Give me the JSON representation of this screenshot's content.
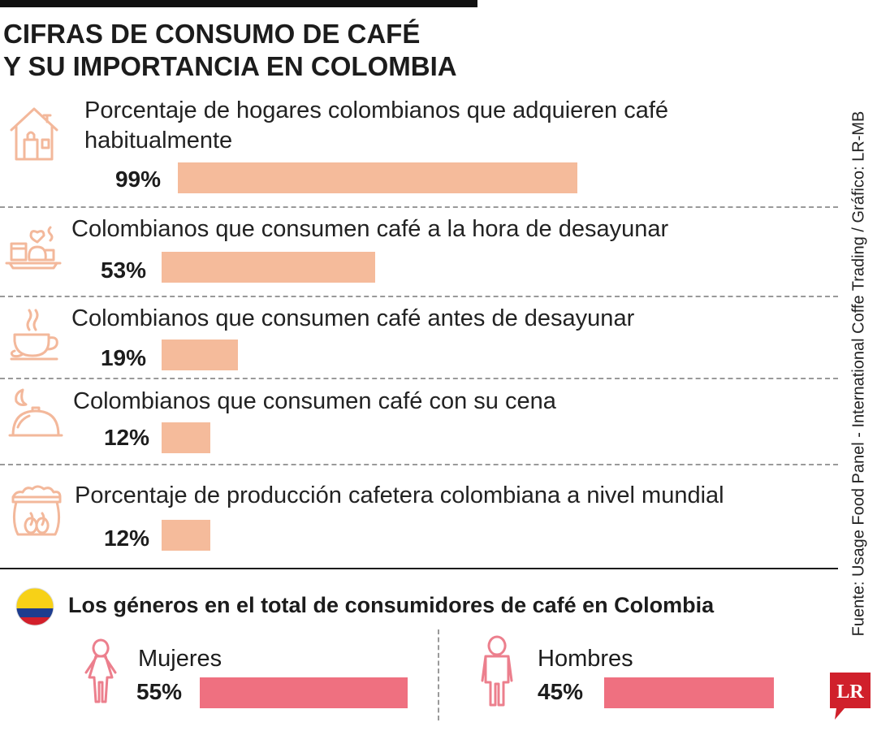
{
  "title": {
    "line1": "CIFRAS DE CONSUMO DE CAFÉ",
    "line2": "Y SU IMPORTANCIA EN COLOMBIA"
  },
  "colors": {
    "bar_main": "#f5bb9b",
    "bar_gender": "#ef7080",
    "icon_main": "#f3b89b",
    "icon_gender": "#ec7f8d"
  },
  "chart_data": [
    {
      "type": "bar",
      "orientation": "horizontal",
      "xlim": [
        0,
        100
      ],
      "categories": [
        "Porcentaje de hogares colombianos que adquieren café habitualmente",
        "Colombianos que consumen café a la hora de desayunar",
        "Colombianos que consumen café antes de desayunar",
        "Colombianos que consumen café con su cena",
        "Porcentaje de producción cafetera colombiana a nivel mundial"
      ],
      "label_lines": [
        [
          "Porcentaje de hogares colombianos que adquieren café",
          "habitualmente"
        ],
        [
          "Colombianos que consumen café a la hora de desayunar"
        ],
        [
          "Colombianos que consumen café antes de desayunar"
        ],
        [
          "Colombianos que consumen café con su cena"
        ],
        [
          "Porcentaje de producción cafetera colombiana a nivel mundial"
        ]
      ],
      "values": [
        99,
        53,
        19,
        12,
        12
      ],
      "value_labels": [
        "99%",
        "53%",
        "19%",
        "12%",
        "12%"
      ],
      "icons": [
        "house-icon",
        "breakfast-tray-icon",
        "coffee-cup-icon",
        "cloche-moon-icon",
        "coffee-sack-icon"
      ]
    },
    {
      "type": "bar",
      "orientation": "horizontal",
      "title": "Los géneros en el total de consumidores de café en Colombia",
      "xlim": [
        0,
        100
      ],
      "categories": [
        "Mujeres",
        "Hombres"
      ],
      "values": [
        55,
        45
      ],
      "value_labels": [
        "55%",
        "45%"
      ],
      "icons": [
        "woman-icon",
        "man-icon"
      ]
    }
  ],
  "source": "Fuente: Usage Food Panel - International Coffe Trading / Gráfico: LR-MB",
  "logo": "LR"
}
